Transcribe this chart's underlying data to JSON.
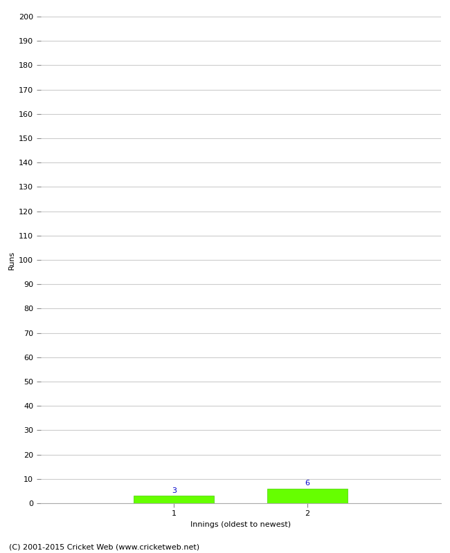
{
  "innings": [
    1,
    2
  ],
  "runs": [
    3,
    6
  ],
  "bar_color": "#66ff00",
  "bar_edgecolor": "#44cc00",
  "value_label_color": "#0000cc",
  "xlabel": "Innings (oldest to newest)",
  "ylabel": "Runs",
  "ylim": [
    0,
    200
  ],
  "ytick_step": 10,
  "ytick_fontsize": 8,
  "xtick_fontsize": 8,
  "xlabel_fontsize": 8,
  "ylabel_fontsize": 8,
  "value_label_fontsize": 8,
  "footer": "(C) 2001-2015 Cricket Web (www.cricketweb.net)",
  "footer_fontsize": 8,
  "grid_color": "#cccccc",
  "background_color": "#ffffff",
  "bar_width": 0.6,
  "xlim": [
    0,
    3
  ]
}
